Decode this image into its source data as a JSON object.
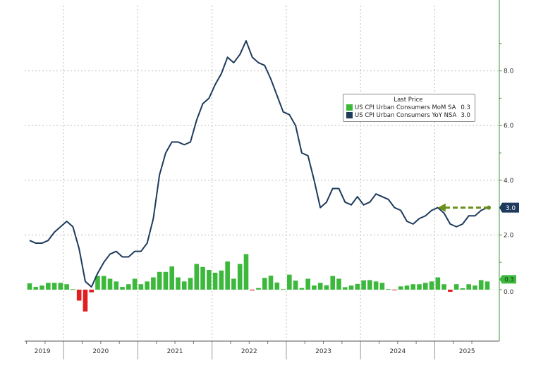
{
  "chart_data": {
    "type": "bar+line",
    "legend": {
      "title": "Last Price",
      "placement": "top-right"
    },
    "x_start": "2019-07",
    "x_end": "2025-09",
    "x_tick_labels": [
      "2019",
      "2020",
      "2021",
      "2022",
      "2023",
      "2024",
      "2025"
    ],
    "y_tick_labels": [
      "8.0",
      "6.0",
      "4.0",
      "2.0",
      "0.0"
    ],
    "y_ticks": [
      8,
      6,
      4,
      2,
      0
    ],
    "ylim": [
      -1.5,
      10
    ],
    "grid": true,
    "series": [
      {
        "name": "US CPI Urban Consumers MoM SA",
        "type": "bar",
        "last_value": "0.3",
        "color": "#3cb83c",
        "negative_color": "#e02020",
        "values": [
          0.23,
          0.1,
          0.15,
          0.25,
          0.25,
          0.25,
          0.2,
          0.02,
          -0.4,
          -0.8,
          -0.1,
          0.5,
          0.5,
          0.4,
          0.3,
          0.1,
          0.2,
          0.4,
          0.2,
          0.3,
          0.45,
          0.65,
          0.65,
          0.85,
          0.45,
          0.3,
          0.43,
          0.94,
          0.83,
          0.72,
          0.62,
          0.7,
          1.03,
          0.4,
          0.94,
          1.3,
          -0.03,
          0.06,
          0.43,
          0.51,
          0.26,
          0.02,
          0.55,
          0.33,
          0.06,
          0.4,
          0.15,
          0.25,
          0.16,
          0.5,
          0.4,
          0.09,
          0.15,
          0.21,
          0.34,
          0.35,
          0.3,
          0.25,
          0.02,
          -0.01,
          0.12,
          0.15,
          0.2,
          0.2,
          0.25,
          0.3,
          0.45,
          0.2,
          -0.08,
          0.2,
          0.05,
          0.2,
          0.15,
          0.35,
          0.3
        ]
      },
      {
        "name": "US CPI Urban Consumers YoY NSA",
        "type": "line",
        "last_value": "3.0",
        "color": "#1e3a5c",
        "values": [
          1.8,
          1.7,
          1.7,
          1.8,
          2.1,
          2.3,
          2.5,
          2.3,
          1.5,
          0.3,
          0.1,
          0.6,
          1.0,
          1.3,
          1.4,
          1.2,
          1.2,
          1.4,
          1.4,
          1.7,
          2.6,
          4.2,
          5.0,
          5.4,
          5.4,
          5.3,
          5.4,
          6.2,
          6.8,
          7.0,
          7.5,
          7.9,
          8.5,
          8.3,
          8.6,
          9.1,
          8.5,
          8.3,
          8.2,
          7.7,
          7.1,
          6.5,
          6.4,
          6.0,
          5.0,
          4.9,
          4.0,
          3.0,
          3.2,
          3.7,
          3.7,
          3.2,
          3.1,
          3.4,
          3.1,
          3.2,
          3.5,
          3.4,
          3.3,
          3.0,
          2.9,
          2.5,
          2.4,
          2.6,
          2.7,
          2.9,
          3.0,
          2.8,
          2.4,
          2.3,
          2.4,
          2.7,
          2.7,
          2.9,
          3.0
        ]
      }
    ],
    "annotation": {
      "type": "dashed-arrow",
      "color": "#6a8f1a",
      "from_value": 3.0,
      "to": "2025-01"
    }
  }
}
